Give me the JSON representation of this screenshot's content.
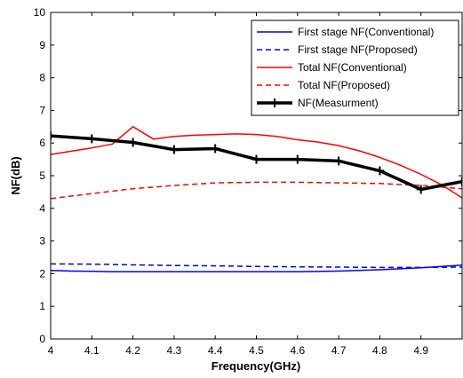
{
  "chart_data": {
    "type": "line",
    "xlabel": "Frequency(GHz)",
    "ylabel": "NF(dB)",
    "xlim": [
      4.0,
      5.0
    ],
    "ylim": [
      0,
      10
    ],
    "xticks": [
      4,
      4.1,
      4.2,
      4.3,
      4.4,
      4.5,
      4.6,
      4.7,
      4.8,
      4.9
    ],
    "xtick_labels": [
      "4",
      "4.1",
      "4.2",
      "4.3",
      "4.4",
      "4.5",
      "4.6",
      "4.7",
      "4.8",
      "4.9"
    ],
    "yticks": [
      0,
      1,
      2,
      3,
      4,
      5,
      6,
      7,
      8,
      9,
      10
    ],
    "ytick_labels": [
      "0",
      "1",
      "2",
      "3",
      "4",
      "5",
      "6",
      "7",
      "8",
      "9",
      "10"
    ],
    "grid": false,
    "legend_position": "top-right",
    "series": [
      {
        "name": "First stage NF(Conventional)",
        "color": "#0000ff",
        "style": "solid",
        "marker": "none",
        "x": [
          4.0,
          4.05,
          4.1,
          4.15,
          4.2,
          4.3,
          4.4,
          4.5,
          4.6,
          4.7,
          4.8,
          4.9,
          5.0
        ],
        "y": [
          2.1,
          2.08,
          2.07,
          2.06,
          2.06,
          2.06,
          2.06,
          2.06,
          2.06,
          2.08,
          2.12,
          2.18,
          2.26
        ]
      },
      {
        "name": "First stage NF(Proposed)",
        "color": "#0000ff",
        "style": "dashed",
        "marker": "none",
        "x": [
          4.0,
          4.1,
          4.2,
          4.3,
          4.4,
          4.5,
          4.6,
          4.7,
          4.8,
          4.9,
          5.0
        ],
        "y": [
          2.3,
          2.29,
          2.27,
          2.25,
          2.24,
          2.22,
          2.21,
          2.2,
          2.19,
          2.19,
          2.2
        ]
      },
      {
        "name": "Total NF(Conventional)",
        "color": "#ff0000",
        "style": "solid",
        "marker": "none",
        "x": [
          4.0,
          4.05,
          4.1,
          4.15,
          4.2,
          4.25,
          4.3,
          4.35,
          4.4,
          4.45,
          4.5,
          4.55,
          4.6,
          4.65,
          4.7,
          4.75,
          4.8,
          4.85,
          4.9,
          4.95,
          5.0
        ],
        "y": [
          5.65,
          5.75,
          5.85,
          5.97,
          6.5,
          6.12,
          6.2,
          6.24,
          6.26,
          6.28,
          6.26,
          6.2,
          6.1,
          6.03,
          5.92,
          5.76,
          5.56,
          5.32,
          5.04,
          4.72,
          4.32
        ]
      },
      {
        "name": "Total NF(Proposed)",
        "color": "#ff0000",
        "style": "dashed",
        "marker": "none",
        "x": [
          4.0,
          4.1,
          4.2,
          4.3,
          4.4,
          4.5,
          4.6,
          4.7,
          4.8,
          4.9,
          5.0
        ],
        "y": [
          4.3,
          4.45,
          4.6,
          4.7,
          4.78,
          4.8,
          4.8,
          4.78,
          4.76,
          4.7,
          4.6
        ]
      },
      {
        "name": "NF(Measurment)",
        "color": "#000000",
        "style": "solid",
        "marker": "plus",
        "x": [
          4.0,
          4.1,
          4.2,
          4.3,
          4.4,
          4.5,
          4.6,
          4.7,
          4.8,
          4.9,
          5.0
        ],
        "y": [
          6.22,
          6.13,
          6.02,
          5.8,
          5.83,
          5.5,
          5.5,
          5.45,
          5.15,
          4.58,
          4.82
        ]
      }
    ]
  }
}
